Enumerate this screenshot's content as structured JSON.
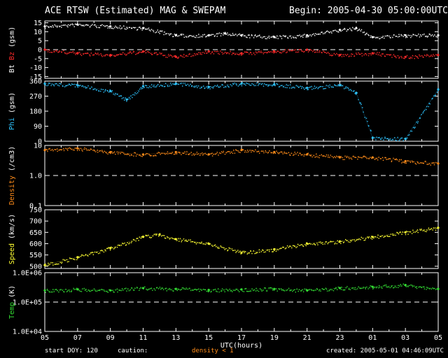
{
  "header": {
    "title": "ACE RTSW (Estimated) MAG & SWEPAM",
    "begin_label": "Begin: 2005-04-30 05:00:00UTC"
  },
  "footer": {
    "start_doy": "start DOY: 120",
    "caution": "caution:",
    "density_note": "density < 1",
    "created": "created: 2005-05-01 04:46:09UTC"
  },
  "colors": {
    "bt": "#ffffff",
    "bz": "#ff2a2a",
    "phi": "#2ec4ff",
    "density": "#ff8c1a",
    "speed": "#ffff33",
    "temp": "#33dd33",
    "axis": "#ffffff",
    "dash": "#ffffff"
  },
  "chart_data": [
    {
      "type": "scatter",
      "panel": "mag",
      "ylabel_parts": [
        "Bt",
        "Bz",
        "(gsm)"
      ],
      "ylim": [
        -16,
        16
      ],
      "yticks": [
        "15",
        "10",
        "5",
        "0",
        "-5",
        "-10",
        "-15"
      ],
      "ytick_values": [
        15,
        10,
        5,
        0,
        -5,
        -10,
        -15
      ],
      "reference_line": 0,
      "series": [
        {
          "name": "Bt",
          "color_key": "bt",
          "hours": [
            0,
            2,
            4,
            6,
            8,
            10,
            11,
            12,
            14,
            16,
            18,
            19,
            20,
            22,
            24
          ],
          "values": [
            13,
            14,
            13,
            12,
            8,
            8,
            9,
            8,
            7,
            8,
            11,
            12,
            7,
            8,
            8
          ]
        },
        {
          "name": "Bz",
          "color_key": "bz",
          "hours": [
            0,
            2,
            4,
            6,
            8,
            10,
            12,
            14,
            16,
            18,
            20,
            22,
            24
          ],
          "values": [
            0,
            -2,
            -3,
            -1,
            -4,
            -1,
            -2,
            -1,
            0,
            -3,
            -2,
            -4,
            -3
          ]
        }
      ]
    },
    {
      "type": "scatter",
      "panel": "phi",
      "ylabel_parts": [
        "Phi",
        "(gsm)"
      ],
      "ylim": [
        0,
        360
      ],
      "yticks": [
        "360",
        "270",
        "180",
        "90",
        "0"
      ],
      "ytick_values": [
        360,
        270,
        180,
        90,
        0
      ],
      "series": [
        {
          "name": "Phi",
          "color_key": "phi",
          "hours": [
            0,
            2,
            4,
            5,
            6,
            8,
            10,
            12,
            14,
            16,
            18,
            19,
            20,
            22,
            24
          ],
          "values": [
            345,
            335,
            300,
            250,
            330,
            345,
            325,
            345,
            340,
            320,
            335,
            290,
            20,
            15,
            310
          ]
        }
      ]
    },
    {
      "type": "scatter",
      "panel": "density",
      "ylabel_parts": [
        "Density",
        "(/cm3)"
      ],
      "ylim": [
        0.1,
        10
      ],
      "yscale": "log",
      "yticks": [
        "10",
        "1.0",
        "0.1"
      ],
      "ytick_values": [
        10,
        1,
        0.1
      ],
      "reference_line": 1,
      "series": [
        {
          "name": "Density",
          "color_key": "density",
          "hours": [
            0,
            2,
            4,
            6,
            8,
            10,
            12,
            14,
            16,
            18,
            20,
            22,
            24
          ],
          "values": [
            7,
            8,
            6,
            5,
            6,
            5,
            7,
            6,
            5,
            4,
            4,
            3,
            2.5
          ]
        }
      ]
    },
    {
      "type": "scatter",
      "panel": "speed",
      "ylabel_parts": [
        "Speed",
        "(km/s)"
      ],
      "ylim": [
        490,
        750
      ],
      "yticks": [
        "750",
        "700",
        "650",
        "600",
        "550",
        "500"
      ],
      "ytick_values": [
        750,
        700,
        650,
        600,
        550,
        500
      ],
      "series": [
        {
          "name": "Speed",
          "color_key": "speed",
          "hours": [
            0,
            2,
            4,
            6,
            7,
            8,
            10,
            12,
            14,
            16,
            18,
            20,
            22,
            24
          ],
          "values": [
            505,
            540,
            580,
            630,
            640,
            620,
            600,
            560,
            575,
            600,
            610,
            630,
            650,
            670
          ]
        }
      ]
    },
    {
      "type": "scatter",
      "panel": "temp",
      "ylabel_parts": [
        "Temp",
        "(K)"
      ],
      "ylim": [
        10000,
        1000000
      ],
      "yscale": "log",
      "yticks": [
        "1.0E+06",
        "1.0E+05",
        "1.0E+04"
      ],
      "ytick_values": [
        1000000,
        100000,
        10000
      ],
      "reference_line": 100000,
      "series": [
        {
          "name": "Temp",
          "color_key": "temp",
          "hours": [
            0,
            2,
            4,
            6,
            8,
            10,
            12,
            14,
            16,
            18,
            20,
            22,
            24
          ],
          "values": [
            250000,
            270000,
            250000,
            300000,
            280000,
            260000,
            270000,
            280000,
            250000,
            300000,
            330000,
            380000,
            280000
          ]
        }
      ]
    }
  ],
  "x_axis": {
    "xlabel": "UTC(hours)",
    "xlim_hours": [
      0,
      24
    ],
    "tick_labels": [
      "05",
      "07",
      "09",
      "11",
      "13",
      "15",
      "17",
      "19",
      "21",
      "23",
      "01",
      "03",
      "05"
    ]
  }
}
